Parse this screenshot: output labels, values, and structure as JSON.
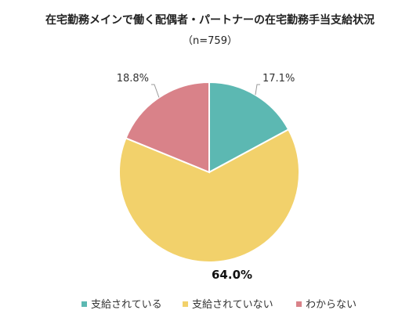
{
  "chart_data": {
    "type": "pie",
    "title": "在宅勤務メインで働く配偶者・パートナーの在宅勤務手当支給状況",
    "subtitle": "（n=759）",
    "categories": [
      "支給されている",
      "支給されていない",
      "わからない"
    ],
    "values": [
      17.1,
      64.0,
      18.8
    ],
    "value_labels": [
      "17.1%",
      "64.0%",
      "18.8%"
    ],
    "colors": [
      "#5cb8b2",
      "#f2d16b",
      "#d98289"
    ],
    "start_angle": "12 o'clock",
    "direction": "clockwise",
    "legend_position": "bottom"
  }
}
